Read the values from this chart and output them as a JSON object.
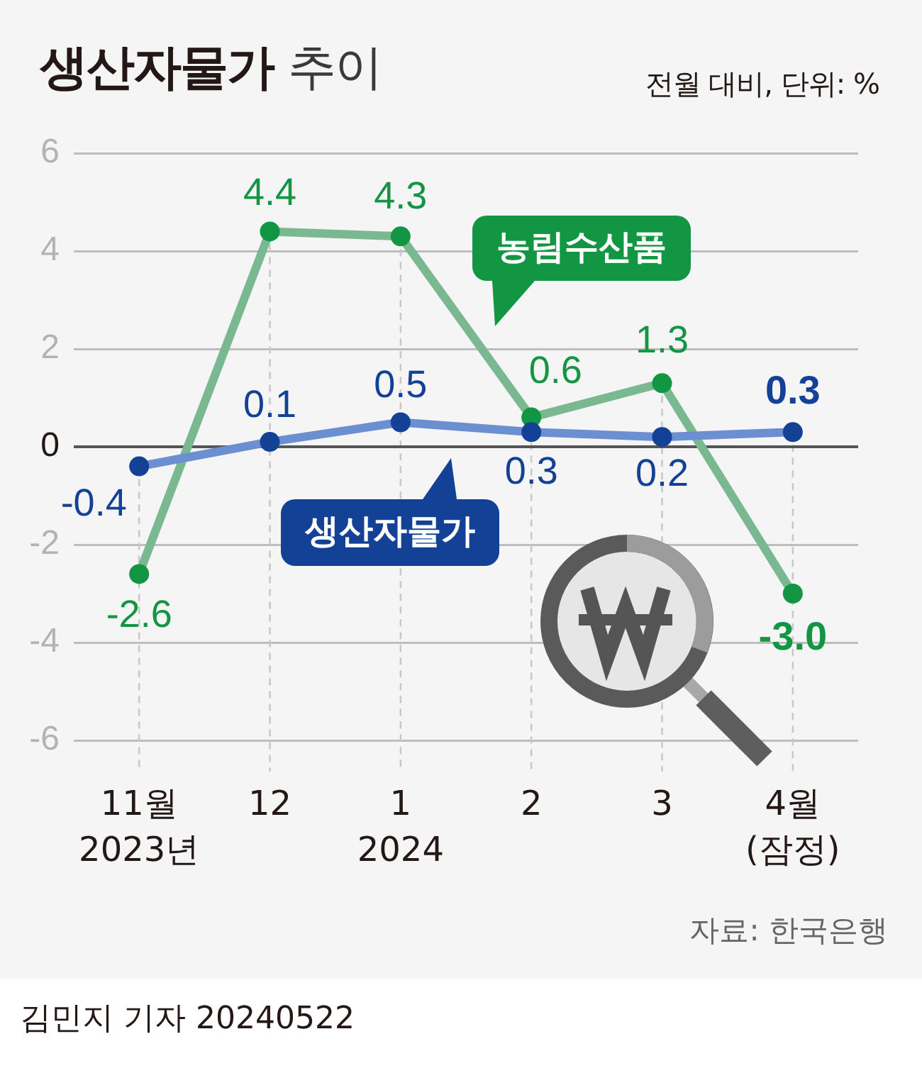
{
  "chart_data": {
    "type": "line",
    "title": "생산자물가 추이",
    "subtitle": "전월 대비, 단위: %",
    "categories": [
      "11월\n2023년",
      "12",
      "1\n2024",
      "2",
      "3",
      "4월\n(잠정)"
    ],
    "series": [
      {
        "name": "생산자물가",
        "color": "#6b8fd1",
        "values": [
          -0.4,
          0.1,
          0.5,
          0.3,
          0.2,
          0.3
        ],
        "value_labels": [
          "-0.4",
          "0.1",
          "0.5",
          "0.3",
          "0.2",
          "0.3"
        ]
      },
      {
        "name": "농림수산품",
        "color": "#7ab891",
        "values": [
          -2.6,
          4.4,
          4.3,
          0.6,
          1.3,
          -3.0
        ],
        "value_labels": [
          "-2.6",
          "4.4",
          "4.3",
          "0.6",
          "1.3",
          "-3.0"
        ]
      }
    ],
    "ylim": [
      -6,
      6
    ],
    "yticks": [
      -6,
      -4,
      -2,
      0,
      2,
      4,
      6
    ],
    "grid": true,
    "legend": false,
    "marker": "circle",
    "line_style": "solid",
    "ref_lines": [
      {
        "axis": "y",
        "value": 0,
        "color": "#555555"
      }
    ],
    "annotations": [
      "자료: 한국은행",
      "김민지 기자 20240522"
    ]
  }
}
